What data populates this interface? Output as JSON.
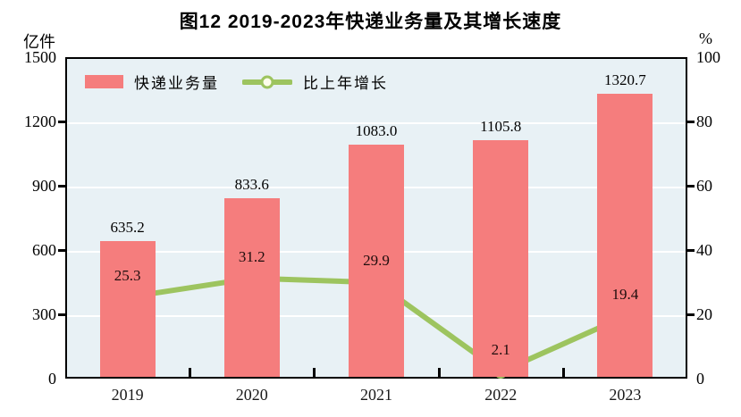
{
  "title": "图12  2019-2023年快递业务量及其增长速度",
  "left_axis": {
    "unit": "亿件",
    "min": 0,
    "max": 1500,
    "ticks": [
      "0",
      "300",
      "600",
      "900",
      "1200",
      "1500"
    ],
    "tick_values": [
      0,
      300,
      600,
      900,
      1200,
      1500
    ]
  },
  "right_axis": {
    "unit": "%",
    "min": 0,
    "max": 100,
    "ticks": [
      "0",
      "20",
      "40",
      "60",
      "80",
      "100"
    ],
    "tick_values": [
      0,
      20,
      40,
      60,
      80,
      100
    ]
  },
  "legend": {
    "bar_label": "快递业务量",
    "line_label": "比上年增长"
  },
  "colors": {
    "bar": "#f57d7d",
    "line": "#9dc45f",
    "marker_fill": "#fdfdea",
    "plot_bg": "#e8f1f5",
    "grid": "#ffffff",
    "axis": "#000000"
  },
  "chart_data": {
    "type": "bar",
    "categories": [
      "2019",
      "2020",
      "2021",
      "2022",
      "2023"
    ],
    "series": [
      {
        "name": "快递业务量",
        "axis": "left",
        "type": "bar",
        "values": [
          635.2,
          833.6,
          1083.0,
          1105.8,
          1320.7
        ],
        "labels": [
          "635.2",
          "833.6",
          "1083.0",
          "1105.8",
          "1320.7"
        ]
      },
      {
        "name": "比上年增长",
        "axis": "right",
        "type": "line",
        "values": [
          25.3,
          31.2,
          29.9,
          2.1,
          19.4
        ],
        "labels": [
          "25.3",
          "31.2",
          "29.9",
          "2.1",
          "19.4"
        ]
      }
    ],
    "title": "图12  2019-2023年快递业务量及其增长速度",
    "xlabel": "",
    "ylabel_left": "亿件",
    "ylabel_right": "%",
    "ylim_left": [
      0,
      1500
    ],
    "ylim_right": [
      0,
      100
    ],
    "grid": true,
    "legend_position": "top-left-inside"
  }
}
